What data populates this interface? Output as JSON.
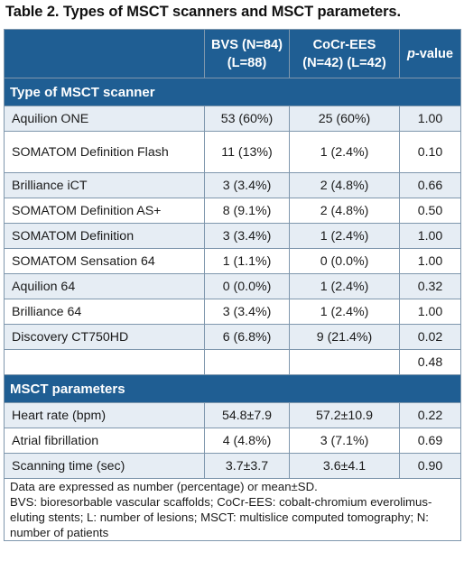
{
  "title": "Table 2. Types of MSCT scanners and MSCT parameters.",
  "columns": {
    "bvs_line1": "BVS (N=84)",
    "bvs_line2": "(L=88)",
    "cocr_line1": "CoCr-EES",
    "cocr_line2": "(N=42) (L=42)",
    "pvalue_italic": "p",
    "pvalue_rest": "-value"
  },
  "sections": [
    {
      "heading": "Type of MSCT scanner",
      "rows": [
        {
          "name": "Aquilion ONE",
          "bvs": "53 (60%)",
          "cocr": "25 (60%)",
          "p": "1.00"
        },
        {
          "name": "SOMATOM Definition Flash",
          "bvs": "11 (13%)",
          "cocr": "1 (2.4%)",
          "p": "0.10"
        },
        {
          "name": "Brilliance iCT",
          "bvs": "3 (3.4%)",
          "cocr": "2 (4.8%)",
          "p": "0.66"
        },
        {
          "name": "SOMATOM Definition AS+",
          "bvs": "8 (9.1%)",
          "cocr": "2 (4.8%)",
          "p": "0.50"
        },
        {
          "name": "SOMATOM Definition",
          "bvs": "3 (3.4%)",
          "cocr": "1 (2.4%)",
          "p": "1.00"
        },
        {
          "name": "SOMATOM Sensation 64",
          "bvs": "1 (1.1%)",
          "cocr": "0 (0.0%)",
          "p": "1.00"
        },
        {
          "name": "Aquilion 64",
          "bvs": "0 (0.0%)",
          "cocr": "1 (2.4%)",
          "p": "0.32"
        },
        {
          "name": "Brilliance 64",
          "bvs": "3 (3.4%)",
          "cocr": "1 (2.4%)",
          "p": "1.00"
        },
        {
          "name": "Discovery CT750HD",
          "bvs": "6 (6.8%)",
          "cocr": "9 (21.4%)",
          "p": "0.02"
        },
        {
          "name": "",
          "bvs": "",
          "cocr": "",
          "p": "0.48"
        }
      ]
    },
    {
      "heading": "MSCT parameters",
      "rows": [
        {
          "name": "Heart rate (bpm)",
          "bvs": "54.8±7.9",
          "cocr": "57.2±10.9",
          "p": "0.22"
        },
        {
          "name": "Atrial fibrillation",
          "bvs": "4 (4.8%)",
          "cocr": "3 (7.1%)",
          "p": "0.69"
        },
        {
          "name": "Scanning time (sec)",
          "bvs": "3.7±3.7",
          "cocr": "3.6±4.1",
          "p": "0.90"
        }
      ]
    }
  ],
  "notes": {
    "line1": "Data are expressed as number (percentage) or mean±SD.",
    "line2": "BVS: bioresorbable vascular scaffolds; CoCr-EES: cobalt-chromium everolimus-eluting stents; L: number of lesions; MSCT: multislice computed tomography; N: number of patients"
  }
}
